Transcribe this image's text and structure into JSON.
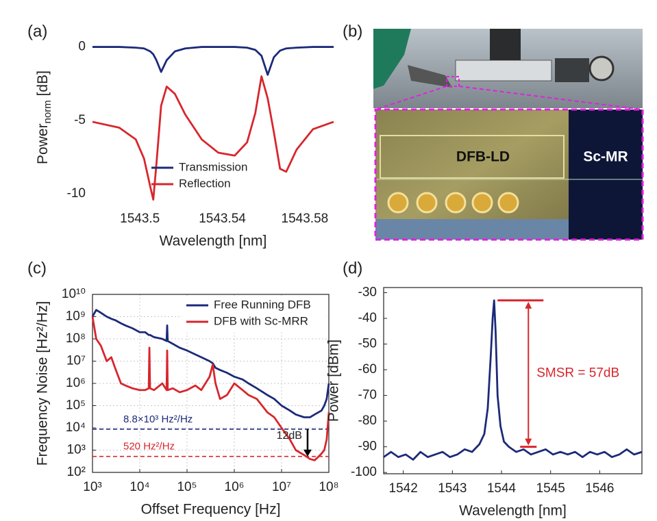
{
  "chart_data": [
    {
      "type": "line",
      "panel_label": "(a)",
      "xlabel": "Wavelength [nm]",
      "ylabel": {
        "main": "Power",
        "sub": "norm",
        "unit": "[dB]"
      },
      "xlim": [
        1543.477,
        1543.594
      ],
      "xticks": [
        1543.5,
        1543.54,
        1543.58
      ],
      "ylim": [
        -10.7,
        1.1
      ],
      "yticks": [
        -10,
        -5,
        0
      ],
      "grid": false,
      "frame": false,
      "legend": "lower center",
      "x": [
        1543.477,
        1543.49,
        1543.498,
        1543.502,
        1543.505,
        1543.5065,
        1543.508,
        1543.5103,
        1543.513,
        1543.517,
        1543.522,
        1543.53,
        1543.538,
        1543.546,
        1543.552,
        1543.556,
        1543.559,
        1543.562,
        1543.565,
        1543.568,
        1543.571,
        1543.576,
        1543.584,
        1543.594
      ],
      "series": [
        {
          "name": "Transmission",
          "color": "#1c2a78",
          "values": [
            0,
            0,
            -0.05,
            -0.1,
            -0.3,
            -0.5,
            -0.9,
            -1.7,
            -0.9,
            -0.3,
            -0.1,
            0,
            0,
            0,
            -0.05,
            -0.2,
            -0.6,
            -1.9,
            -0.7,
            -0.25,
            -0.1,
            -0.05,
            0,
            0
          ]
        },
        {
          "name": "Reflection",
          "color": "#d7262c",
          "values": [
            -5.1,
            -5.5,
            -6.3,
            -7.6,
            -9.5,
            -10.4,
            -8,
            -4,
            -2.7,
            -3.2,
            -4.6,
            -6.3,
            -7.2,
            -7.4,
            -6.5,
            -4.5,
            -2,
            -3.5,
            -5.8,
            -8.3,
            -8.5,
            -7,
            -5.6,
            -5.1
          ]
        }
      ]
    },
    {
      "type": "line",
      "panel_label": "(c)",
      "xlabel": "Offset Frequency [Hz]",
      "ylabel": "Frequency Noise [Hz²/Hz]",
      "xscale": "log",
      "yscale": "log",
      "xlim": [
        1000,
        100000000
      ],
      "ylim": [
        100,
        10000000000
      ],
      "xticks": [
        {
          "value": 1000,
          "label": "10³"
        },
        {
          "value": 10000,
          "label": "10⁴"
        },
        {
          "value": 100000,
          "label": "10⁵"
        },
        {
          "value": 1000000,
          "label": "10⁶"
        },
        {
          "value": 10000000,
          "label": "10⁷"
        },
        {
          "value": 100000000,
          "label": "10⁸"
        }
      ],
      "yticks": [
        {
          "value": 100,
          "label": "10²"
        },
        {
          "value": 1000,
          "label": "10³"
        },
        {
          "value": 10000,
          "label": "10⁴"
        },
        {
          "value": 100000,
          "label": "10⁵"
        },
        {
          "value": 1000000,
          "label": "10⁶"
        },
        {
          "value": 10000000,
          "label": "10⁷"
        },
        {
          "value": 100000000,
          "label": "10⁸"
        },
        {
          "value": 1000000000,
          "label": "10⁹"
        },
        {
          "value": 10000000000,
          "label": "10¹⁰"
        }
      ],
      "grid": true,
      "frame": true,
      "legend": "upper right",
      "x": [
        1000,
        1200,
        1500,
        2000,
        2500,
        3000,
        4000,
        5000,
        7000,
        10000,
        13000,
        15500,
        16000,
        16500,
        20000,
        30000,
        37000,
        38000,
        39000,
        50000,
        70000,
        100000,
        150000,
        200000,
        300000,
        350000,
        400000,
        500000,
        700000,
        1000000,
        1500000,
        2000000,
        3000000,
        5000000,
        7000000,
        10000000,
        15000000,
        20000000,
        30000000,
        40000000,
        50000000,
        60000000,
        70000000,
        80000000,
        90000000,
        100000000
      ],
      "series": [
        {
          "name": "Free Running DFB",
          "color": "#1c2a78",
          "values": [
            1000000000,
            2000000000,
            1500000000,
            1000000000,
            800000000,
            700000000,
            500000000,
            400000000,
            300000000,
            200000000,
            200000000,
            150000000,
            150000000,
            150000000,
            120000000,
            100000000,
            80000000,
            400000000,
            80000000,
            60000000,
            40000000,
            30000000,
            20000000,
            15000000,
            10000000,
            8000000,
            5000000,
            4000000,
            3000000,
            2000000,
            1500000,
            1000000,
            600000,
            300000,
            200000,
            100000,
            60000,
            40000,
            30000,
            30000,
            40000,
            50000,
            60000,
            100000,
            200000,
            1000000
          ]
        },
        {
          "name": "DFB with Sc-MRR",
          "color": "#d7262c",
          "values": [
            1000000000,
            100000000,
            50000000,
            10000000,
            15000000,
            5000000,
            1000000,
            800000,
            600000,
            500000,
            500000,
            600000,
            40000000,
            600000,
            500000,
            1000000,
            500000,
            30000000,
            500000,
            600000,
            400000,
            500000,
            800000,
            500000,
            2000000,
            7000000,
            1000000,
            200000,
            300000,
            1000000,
            500000,
            300000,
            200000,
            50000,
            30000,
            10000,
            3000,
            1000,
            600,
            400,
            350,
            500,
            700,
            1000,
            3000,
            50000
          ]
        }
      ],
      "reference_lines": [
        {
          "value": 8800,
          "label": "8.8×10³ Hz²/Hz",
          "color": "#1c2a78"
        },
        {
          "value": 520,
          "label": "520 Hz²/Hz",
          "color": "#d7262c"
        }
      ],
      "improvement": {
        "value": 12,
        "label": "12dB"
      }
    },
    {
      "type": "line",
      "panel_label": "(d)",
      "xlabel": "Wavelength [nm]",
      "ylabel": "Power [dBm]",
      "xlim": [
        1541.6,
        1546.86
      ],
      "xticks": [
        1542,
        1543,
        1544,
        1545,
        1546
      ],
      "ylim": [
        -100.5,
        -28
      ],
      "yticks": [
        -100,
        -90,
        -80,
        -70,
        -60,
        -50,
        -40,
        -30
      ],
      "grid": false,
      "frame": true,
      "x": [
        1541.6,
        1541.75,
        1541.9,
        1542.05,
        1542.2,
        1542.35,
        1542.5,
        1542.65,
        1542.8,
        1542.95,
        1543.1,
        1543.25,
        1543.4,
        1543.55,
        1543.65,
        1543.72,
        1543.78,
        1543.82,
        1543.85,
        1543.88,
        1543.92,
        1543.98,
        1544.05,
        1544.15,
        1544.3,
        1544.45,
        1544.6,
        1544.75,
        1544.9,
        1545.05,
        1545.2,
        1545.35,
        1545.5,
        1545.65,
        1545.8,
        1545.95,
        1546.1,
        1546.25,
        1546.4,
        1546.55,
        1546.7,
        1546.86
      ],
      "series": [
        {
          "color": "#1c2a78",
          "values": [
            -94,
            -92,
            -94,
            -93,
            -95,
            -92,
            -94,
            -93,
            -92,
            -94,
            -93,
            -91,
            -92,
            -89,
            -85,
            -75,
            -55,
            -40,
            -33,
            -45,
            -70,
            -82,
            -88,
            -90,
            -92,
            -91,
            -93,
            -92,
            -91,
            -93,
            -92,
            -93,
            -92,
            -94,
            -92,
            -93,
            -92,
            -94,
            -93,
            -91,
            -93,
            -92
          ]
        }
      ],
      "smsr": {
        "value": 57,
        "label": "SMSR = 57dB",
        "top": -33,
        "bottom": -90,
        "color": "#d7262c"
      }
    }
  ],
  "photo": {
    "panel_label": "(b)",
    "labels": [
      "DFB-LD",
      "Sc-MR"
    ]
  }
}
